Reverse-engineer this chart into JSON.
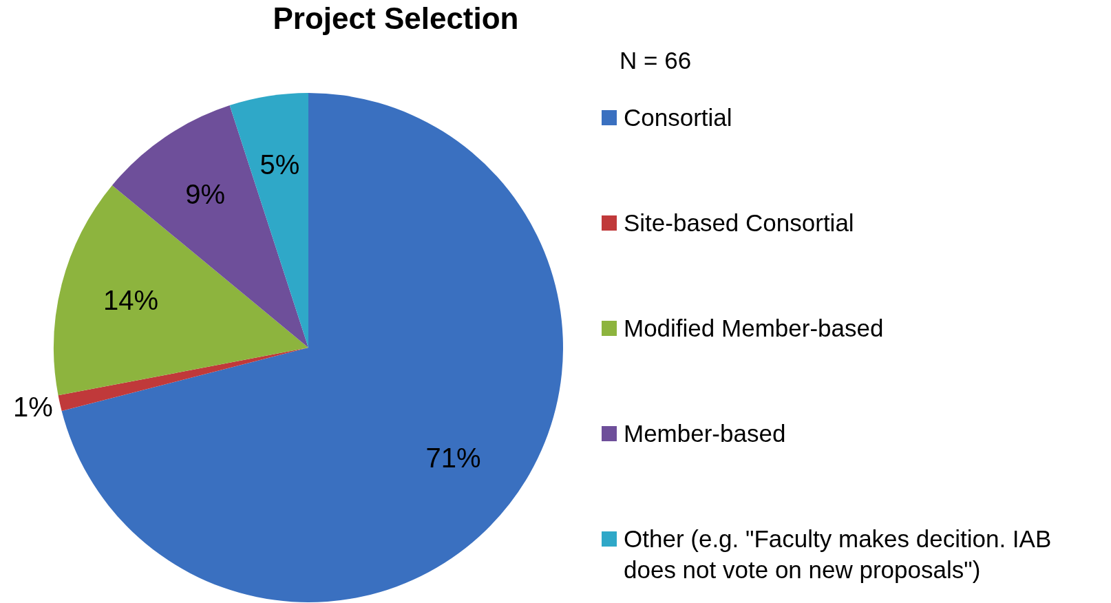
{
  "chart_data": {
    "type": "pie",
    "title": "Project Selection",
    "legend_title": "N = 66",
    "legend": "right",
    "categories": [
      "Consortial",
      "Site-based Consortial",
      "Modified Member-based",
      "Member-based",
      "Other (e.g. \"Faculty makes decition. IAB does not vote on new proposals\")"
    ],
    "values": [
      71,
      1,
      14,
      9,
      5
    ],
    "colors": [
      "#3a70c0",
      "#c0393a",
      "#8db43e",
      "#6e4f9a",
      "#2fa8c8"
    ],
    "value_labels": [
      "71%",
      "1%",
      "14%",
      "9%",
      "5%"
    ]
  }
}
